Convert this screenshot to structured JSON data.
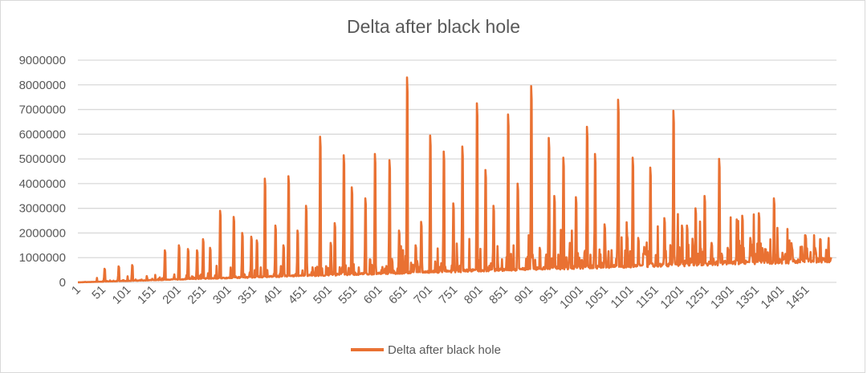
{
  "chart_data": {
    "type": "line",
    "title": "Delta after black hole",
    "xlabel": "",
    "ylabel": "",
    "series_color": "#E97132",
    "legend": {
      "position": "bottom",
      "entries": [
        "Delta after black hole"
      ]
    },
    "grid": {
      "horizontal": true,
      "vertical": false
    },
    "x_range": [
      1,
      1500
    ],
    "ylim": [
      0,
      9000000
    ],
    "yticks": [
      "0",
      "1000000",
      "2000000",
      "3000000",
      "4000000",
      "5000000",
      "6000000",
      "7000000",
      "8000000",
      "9000000"
    ],
    "xticks": [
      "1",
      "51",
      "101",
      "151",
      "201",
      "251",
      "301",
      "351",
      "401",
      "451",
      "501",
      "551",
      "601",
      "651",
      "701",
      "751",
      "801",
      "851",
      "901",
      "951",
      "1001",
      "1051",
      "1101",
      "1151",
      "1201",
      "1251",
      "1301",
      "1351",
      "1401",
      "1451"
    ],
    "series": [
      {
        "name": "Delta after black hole",
        "baseline_trend": {
          "start": 0,
          "end": 850000
        },
        "peaks": [
          [
            54,
            550000
          ],
          [
            82,
            650000
          ],
          [
            109,
            700000
          ],
          [
            174,
            1300000
          ],
          [
            202,
            1500000
          ],
          [
            220,
            1350000
          ],
          [
            238,
            1300000
          ],
          [
            250,
            1750000
          ],
          [
            264,
            1400000
          ],
          [
            284,
            2900000
          ],
          [
            311,
            2650000
          ],
          [
            328,
            2000000
          ],
          [
            346,
            1850000
          ],
          [
            357,
            1700000
          ],
          [
            373,
            4200000
          ],
          [
            394,
            2300000
          ],
          [
            410,
            1500000
          ],
          [
            420,
            4300000
          ],
          [
            438,
            2100000
          ],
          [
            455,
            3100000
          ],
          [
            483,
            5900000
          ],
          [
            504,
            1600000
          ],
          [
            512,
            2400000
          ],
          [
            530,
            5150000
          ],
          [
            546,
            3850000
          ],
          [
            573,
            3400000
          ],
          [
            592,
            5200000
          ],
          [
            621,
            4950000
          ],
          [
            640,
            2100000
          ],
          [
            656,
            8300000
          ],
          [
            673,
            1500000
          ],
          [
            684,
            2450000
          ],
          [
            702,
            5950000
          ],
          [
            729,
            5300000
          ],
          [
            748,
            3200000
          ],
          [
            766,
            5500000
          ],
          [
            795,
            7250000
          ],
          [
            812,
            4550000
          ],
          [
            828,
            3100000
          ],
          [
            857,
            6800000
          ],
          [
            876,
            4000000
          ],
          [
            899,
            1000000
          ],
          [
            903,
            7950000
          ],
          [
            920,
            1400000
          ],
          [
            938,
            5850000
          ],
          [
            949,
            3500000
          ],
          [
            967,
            5050000
          ],
          [
            980,
            1600000
          ],
          [
            992,
            3450000
          ],
          [
            1014,
            6300000
          ],
          [
            1030,
            5200000
          ],
          [
            1049,
            2350000
          ],
          [
            1076,
            7400000
          ],
          [
            1094,
            1900000
          ],
          [
            1105,
            5050000
          ],
          [
            1116,
            1800000
          ],
          [
            1140,
            4650000
          ],
          [
            1168,
            2600000
          ],
          [
            1186,
            6950000
          ],
          [
            1203,
            2300000
          ],
          [
            1213,
            2300000
          ],
          [
            1230,
            3000000
          ],
          [
            1248,
            3500000
          ],
          [
            1262,
            1600000
          ],
          [
            1277,
            5000000
          ],
          [
            1294,
            1400000
          ],
          [
            1312,
            2550000
          ],
          [
            1323,
            2700000
          ],
          [
            1339,
            1800000
          ],
          [
            1356,
            2800000
          ],
          [
            1368,
            1350000
          ],
          [
            1386,
            3400000
          ],
          [
            1403,
            1200000
          ],
          [
            1422,
            1400000
          ],
          [
            1449,
            1900000
          ],
          [
            1468,
            1400000
          ]
        ]
      }
    ]
  }
}
